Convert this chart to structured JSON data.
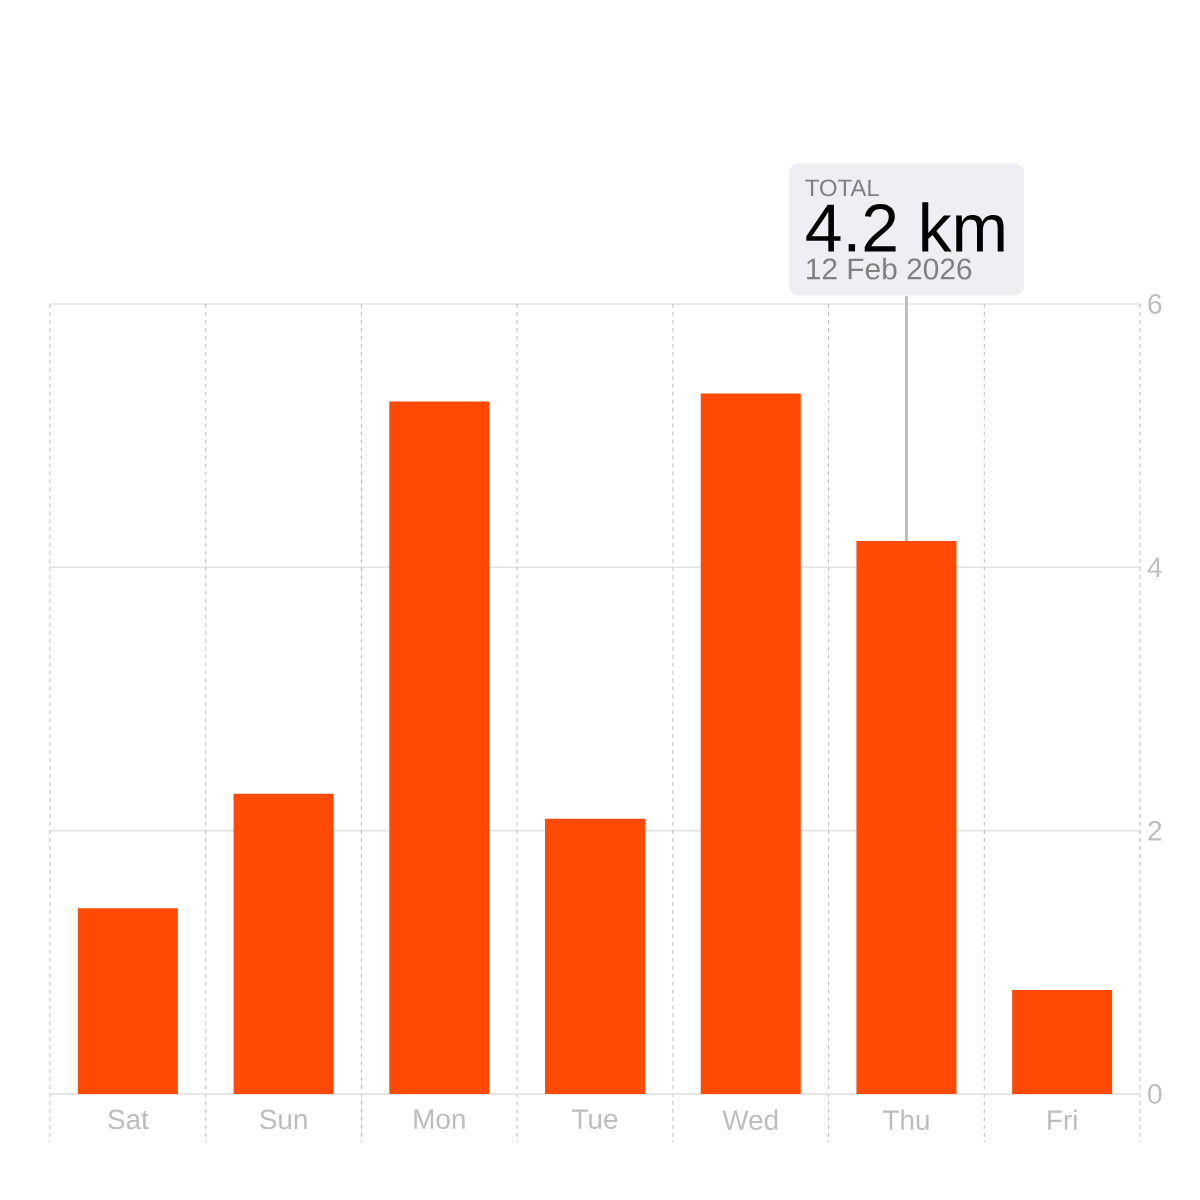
{
  "chart_data": {
    "type": "bar",
    "categories": [
      "Sat",
      "Sun",
      "Mon",
      "Tue",
      "Wed",
      "Thu",
      "Fri"
    ],
    "values": [
      1.41,
      2.28,
      5.26,
      2.09,
      5.32,
      4.2,
      0.79
    ],
    "color": "#ff4a06",
    "ylim": [
      0,
      6
    ],
    "yticks": [
      0,
      2,
      4,
      6
    ],
    "grid": true,
    "annotations": [
      "TOTAL",
      {
        "text": "4.2 km",
        "x": "Thu",
        "y": 4.2
      },
      "12 Feb 2026"
    ]
  }
}
